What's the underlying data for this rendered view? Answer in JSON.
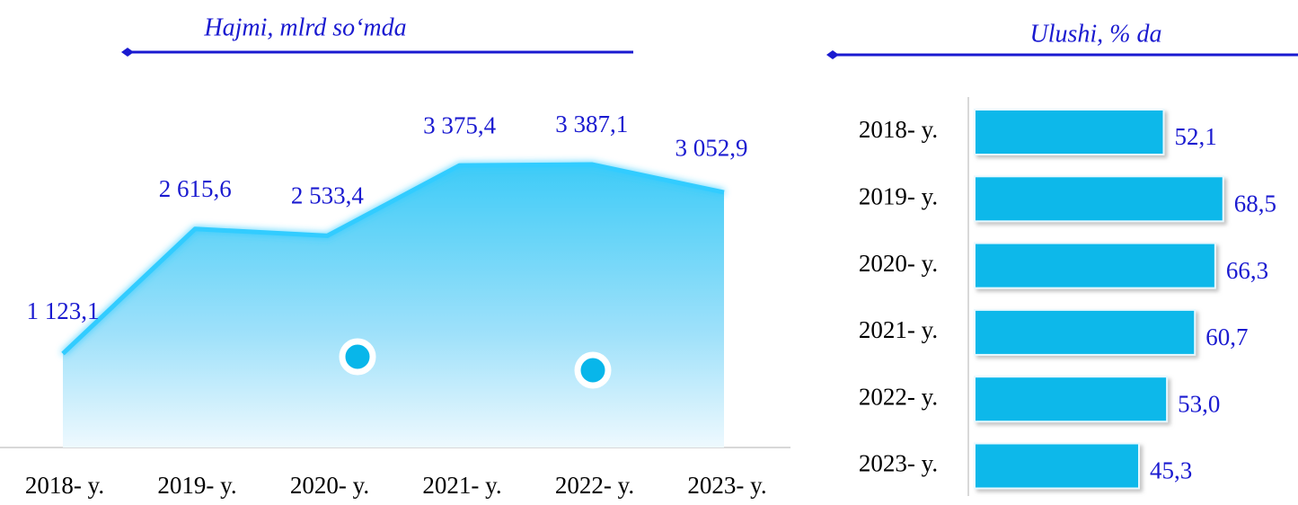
{
  "chart_data": [
    {
      "type": "area",
      "title": "Hajmi, mlrd so‘mda",
      "categories": [
        "2018- y.",
        "2019- y.",
        "2020- y.",
        "2021- y.",
        "2022- y.",
        "2023- y."
      ],
      "values": [
        1123.1,
        2615.6,
        2533.4,
        3375.4,
        3387.1,
        3052.9
      ],
      "value_labels": [
        "1 123,1",
        "2 615,6",
        "2 533,4",
        "3 375,4",
        "3 387,1",
        "3 052,9"
      ],
      "color": "#33ccff",
      "label_color": "#1a1ad0"
    },
    {
      "type": "barh",
      "title": "Ulushi, % da",
      "categories": [
        "2018- y.",
        "2019- y.",
        "2020- y.",
        "2021- y.",
        "2022- y.",
        "2023- y."
      ],
      "values": [
        52.1,
        68.5,
        66.3,
        60.7,
        53.0,
        45.3
      ],
      "value_labels": [
        "52,1",
        "68,5",
        "66,3",
        "60,7",
        "53,0",
        "45,3"
      ],
      "color": "#0bb8ea",
      "label_color": "#1a1ad0"
    }
  ]
}
